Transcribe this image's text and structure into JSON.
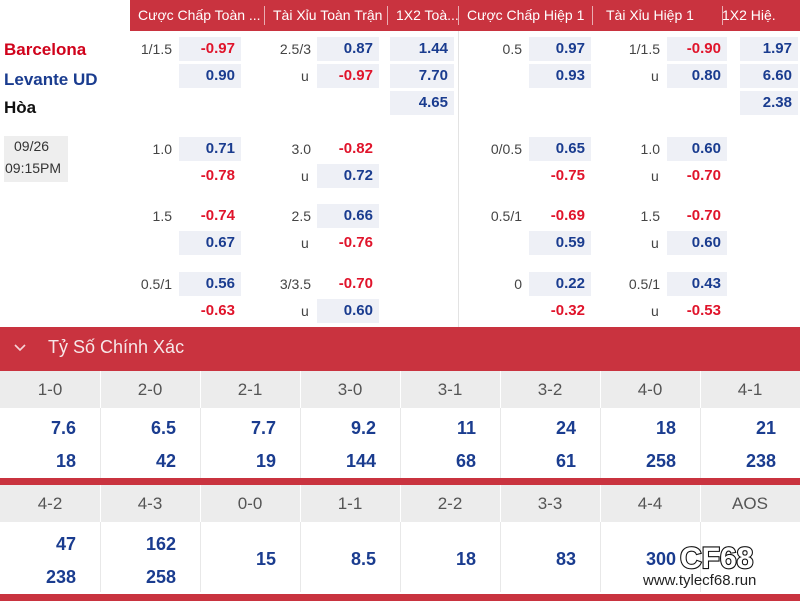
{
  "header": {
    "columns": [
      {
        "label": "Cược Chấp Toàn ..."
      },
      {
        "label": "Tài Xỉu Toàn Trận"
      },
      {
        "label": "1X2 Toà..."
      },
      {
        "label": "Cược Chấp Hiệp 1"
      },
      {
        "label": "Tài Xỉu Hiệp 1"
      },
      {
        "label": "1X2 Hiệ."
      }
    ]
  },
  "match": {
    "home": "Barcelona",
    "away": "Levante UD",
    "draw": "Hòa",
    "date": "09/26",
    "time": "09:15PM"
  },
  "rows": [
    {
      "hdp_line": "1/1.5",
      "hdp_home": "-0.97",
      "hdp_away": "0.90",
      "ou_line": "2.5/3",
      "ou_over": "0.87",
      "ou_u": "u",
      "ou_under": "-0.97",
      "x12_home": "1.44",
      "x12_away": "7.70",
      "x12_draw": "4.65",
      "h1_hdp_line": "0.5",
      "h1_hdp_home": "0.97",
      "h1_hdp_away": "0.93",
      "h1_ou_line": "1/1.5",
      "h1_ou_over": "-0.90",
      "h1_ou_u": "u",
      "h1_ou_under": "0.80",
      "h1_x12_home": "1.97",
      "h1_x12_away": "6.60",
      "h1_x12_draw": "2.38"
    },
    {
      "hdp_line": "1.0",
      "hdp_home": "0.71",
      "hdp_away": "-0.78",
      "ou_line": "3.0",
      "ou_over": "-0.82",
      "ou_u": "u",
      "ou_under": "0.72",
      "h1_hdp_line": "0/0.5",
      "h1_hdp_home": "0.65",
      "h1_hdp_away": "-0.75",
      "h1_ou_line": "1.0",
      "h1_ou_over": "0.60",
      "h1_ou_u": "u",
      "h1_ou_under": "-0.70"
    },
    {
      "hdp_line": "1.5",
      "hdp_home": "-0.74",
      "hdp_away": "0.67",
      "ou_line": "2.5",
      "ou_over": "0.66",
      "ou_u": "u",
      "ou_under": "-0.76",
      "h1_hdp_line": "0.5/1",
      "h1_hdp_home": "-0.69",
      "h1_hdp_away": "0.59",
      "h1_ou_line": "1.5",
      "h1_ou_over": "-0.70",
      "h1_ou_u": "u",
      "h1_ou_under": "0.60"
    },
    {
      "hdp_line": "0.5/1",
      "hdp_home": "0.56",
      "hdp_away": "-0.63",
      "ou_line": "3/3.5",
      "ou_over": "-0.70",
      "ou_u": "u",
      "ou_under": "0.60",
      "h1_hdp_line": "0",
      "h1_hdp_home": "0.22",
      "h1_hdp_away": "-0.32",
      "h1_ou_line": "0.5/1",
      "h1_ou_over": "0.43",
      "h1_ou_u": "u",
      "h1_ou_under": "-0.53"
    }
  ],
  "correct_score": {
    "title": "Tỷ Số Chính Xác",
    "row1": [
      {
        "score": "1-0",
        "a": "7.6",
        "b": "18"
      },
      {
        "score": "2-0",
        "a": "6.5",
        "b": "42"
      },
      {
        "score": "2-1",
        "a": "7.7",
        "b": "19"
      },
      {
        "score": "3-0",
        "a": "9.2",
        "b": "144"
      },
      {
        "score": "3-1",
        "a": "11",
        "b": "68"
      },
      {
        "score": "3-2",
        "a": "24",
        "b": "61"
      },
      {
        "score": "4-0",
        "a": "18",
        "b": "258"
      },
      {
        "score": "4-1",
        "a": "21",
        "b": "238"
      }
    ],
    "row2": [
      {
        "score": "4-2",
        "a": "47",
        "b": "238"
      },
      {
        "score": "4-3",
        "a": "162",
        "b": "258"
      },
      {
        "score": "0-0",
        "a": "15"
      },
      {
        "score": "1-1",
        "a": "8.5"
      },
      {
        "score": "2-2",
        "a": "18"
      },
      {
        "score": "3-3",
        "a": "83"
      },
      {
        "score": "4-4",
        "a": "300"
      },
      {
        "score": "AOS",
        "a": ""
      }
    ]
  },
  "watermark": {
    "logo": "CF68",
    "url": "www.tylecf68.run"
  },
  "colors": {
    "accent_red": "#c9333f",
    "odds_blue": "#1a3c8f",
    "odds_red": "#e0142b"
  }
}
